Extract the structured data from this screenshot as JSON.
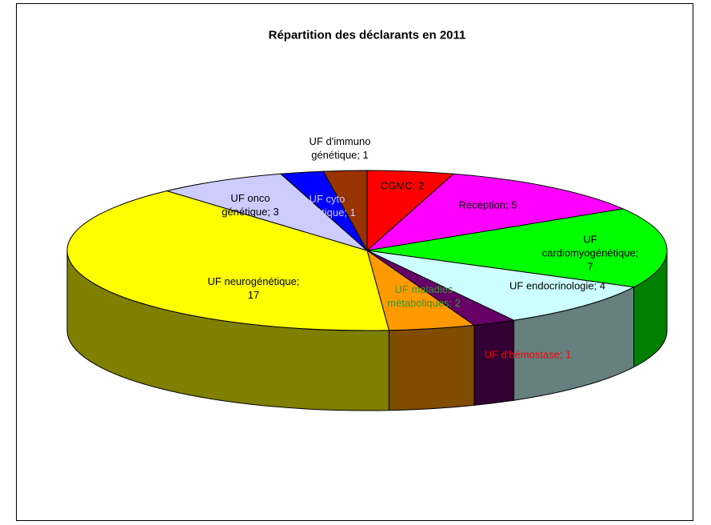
{
  "chart_data": {
    "type": "pie3d",
    "title": "Répartition des déclarants en 2011",
    "categories": [
      "CGMC",
      "Réception",
      "UF cardiomyogénétique",
      "UF endocrinologie",
      "UF d'hémostase",
      "UF maladies métaboliques",
      "UF neurogénétique",
      "UF onco génétique",
      "UF cyto génétique",
      "UF d'immuno génétique"
    ],
    "values": [
      2,
      5,
      7,
      4,
      1,
      2,
      17,
      3,
      1,
      1
    ],
    "value_labels": [
      "CGMC; 2",
      "Réception; 5",
      "UF\ncardiomyogénétique;\n7",
      "UF endocrinologie; 4",
      "UF d'hémostase; 1",
      "UF maladies\nmétaboliques; 2",
      "UF neurogénétique;\n17",
      "UF onco\ngénétique; 3",
      "UF cyto\ngénétique; 1",
      "UF d'immuno\ngénétique; 1"
    ],
    "colors": [
      "#ff0000",
      "#ff00ff",
      "#00ff00",
      "#ccffff",
      "#660066",
      "#ff9900",
      "#ffff00",
      "#ccccff",
      "#0000ff",
      "#993300"
    ],
    "label_colors": [
      "#000000",
      "#000000",
      "#000000",
      "#000000",
      "#ff0000",
      "#339933",
      "#000000",
      "#000000",
      "#ccccff",
      "#000000"
    ]
  }
}
